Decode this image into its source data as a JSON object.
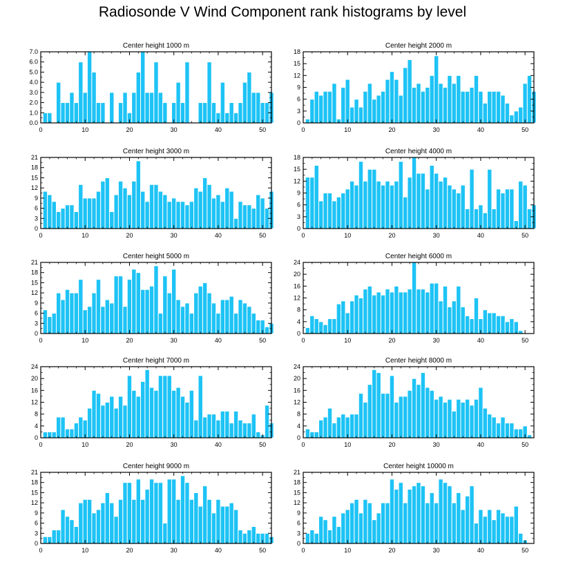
{
  "title": "Radiosonde V Wind Component rank histograms by level",
  "colors": {
    "bar": "#1ec3f5",
    "bar_edge": "#ffffff",
    "axis": "#000000"
  },
  "chart_data": [
    {
      "type": "bar",
      "title": "Center height 1000 m",
      "xlim": [
        0,
        52
      ],
      "xticks": [
        0,
        10,
        20,
        30,
        40,
        50
      ],
      "ylim": [
        0,
        7
      ],
      "yticks": [
        "0.0",
        "1.0",
        "2.0",
        "3.0",
        "4.0",
        "5.0",
        "6.0",
        "7.0"
      ],
      "values": [
        1,
        1,
        0,
        4,
        2,
        2,
        3,
        2,
        6,
        3,
        7,
        5,
        2,
        2,
        0,
        3,
        0,
        2,
        3,
        1,
        3,
        5,
        7,
        3,
        3,
        6,
        3,
        2,
        0,
        2,
        4,
        2,
        6,
        0,
        0,
        2,
        2,
        6,
        2,
        1,
        4,
        1,
        2,
        1,
        2,
        4,
        5,
        3,
        3,
        2,
        2,
        3
      ]
    },
    {
      "type": "bar",
      "title": "Center height 2000 m",
      "xlim": [
        0,
        52
      ],
      "xticks": [
        0,
        10,
        20,
        30,
        40,
        50
      ],
      "ylim": [
        0,
        18
      ],
      "yticks": [
        "0",
        "3",
        "6",
        "9",
        "12",
        "15",
        "18"
      ],
      "values": [
        1,
        6,
        8,
        7,
        8,
        8,
        10,
        1,
        9,
        11,
        4,
        6,
        4,
        8,
        10,
        6,
        7,
        8,
        11,
        13,
        11,
        7,
        14,
        16,
        9,
        10,
        8,
        9,
        12,
        17,
        10,
        9,
        12,
        10,
        12,
        8,
        8,
        9,
        12,
        8,
        5,
        8,
        8,
        8,
        7,
        5,
        2,
        3,
        4,
        10,
        12,
        8
      ]
    },
    {
      "type": "bar",
      "title": "Center height 3000 m",
      "xlim": [
        0,
        52
      ],
      "xticks": [
        0,
        10,
        20,
        30,
        40,
        50
      ],
      "ylim": [
        0,
        21
      ],
      "yticks": [
        "0",
        "3",
        "6",
        "9",
        "12",
        "15",
        "18",
        "21"
      ],
      "values": [
        11,
        10,
        8,
        5,
        6,
        7,
        7,
        5,
        13,
        9,
        9,
        9,
        11,
        14,
        15,
        5,
        10,
        14,
        12,
        10,
        14,
        20,
        11,
        8,
        13,
        13,
        11,
        10,
        8,
        9,
        8,
        8,
        7,
        8,
        12,
        11,
        15,
        13,
        9,
        10,
        8,
        12,
        11,
        3,
        8,
        7,
        7,
        6,
        10,
        9,
        6,
        11
      ]
    },
    {
      "type": "bar",
      "title": "Center height 4000 m",
      "xlim": [
        0,
        52
      ],
      "xticks": [
        0,
        10,
        20,
        30,
        40,
        50
      ],
      "ylim": [
        0,
        18
      ],
      "yticks": [
        "0",
        "3",
        "6",
        "9",
        "12",
        "15",
        "18"
      ],
      "values": [
        13,
        13,
        16,
        7,
        9,
        9,
        7,
        8,
        9,
        10,
        12,
        11,
        17,
        12,
        15,
        15,
        12,
        11,
        12,
        11,
        12,
        17,
        8,
        13,
        18,
        14,
        14,
        10,
        16,
        14,
        12,
        13,
        11,
        10,
        9,
        11,
        5,
        15,
        5,
        6,
        4,
        15,
        5,
        10,
        9,
        10,
        10,
        2,
        12,
        11,
        5,
        6
      ]
    },
    {
      "type": "bar",
      "title": "Center height 5000 m",
      "xlim": [
        0,
        52
      ],
      "xticks": [
        0,
        10,
        20,
        30,
        40,
        50
      ],
      "ylim": [
        0,
        21
      ],
      "yticks": [
        "0",
        "3",
        "6",
        "9",
        "12",
        "15",
        "18",
        "21"
      ],
      "values": [
        7,
        5,
        6,
        12,
        10,
        13,
        12,
        12,
        16,
        7,
        8,
        12,
        16,
        8,
        10,
        9,
        17,
        17,
        8,
        16,
        19,
        18,
        13,
        13,
        14,
        20,
        6,
        17,
        12,
        19,
        10,
        8,
        9,
        6,
        12,
        14,
        15,
        12,
        9,
        6,
        10,
        10,
        11,
        6,
        10,
        9,
        8,
        6,
        4,
        4,
        2,
        3
      ]
    },
    {
      "type": "bar",
      "title": "Center height 6000 m",
      "xlim": [
        0,
        52
      ],
      "xticks": [
        0,
        10,
        20,
        30,
        40,
        50
      ],
      "ylim": [
        0,
        24
      ],
      "yticks": [
        "0",
        "4",
        "8",
        "12",
        "16",
        "20",
        "24"
      ],
      "values": [
        2,
        6,
        5,
        4,
        3,
        5,
        5,
        10,
        11,
        7,
        11,
        13,
        12,
        15,
        16,
        13,
        14,
        13,
        15,
        14,
        16,
        14,
        14,
        15,
        24,
        15,
        15,
        14,
        17,
        17,
        11,
        16,
        9,
        11,
        16,
        9,
        6,
        5,
        12,
        5,
        8,
        7,
        7,
        6,
        6,
        4,
        5,
        4,
        1,
        0,
        0,
        0
      ]
    },
    {
      "type": "bar",
      "title": "Center height 7000 m",
      "xlim": [
        0,
        52
      ],
      "xticks": [
        0,
        10,
        20,
        30,
        40,
        50
      ],
      "ylim": [
        0,
        24
      ],
      "yticks": [
        "0",
        "4",
        "8",
        "12",
        "16",
        "20",
        "24"
      ],
      "values": [
        2,
        2,
        2,
        7,
        7,
        3,
        3,
        5,
        7,
        6,
        10,
        16,
        15,
        11,
        12,
        14,
        10,
        14,
        11,
        21,
        16,
        14,
        19,
        23,
        17,
        16,
        21,
        21,
        21,
        16,
        17,
        14,
        12,
        16,
        6,
        21,
        7,
        8,
        8,
        6,
        9,
        9,
        5,
        9,
        6,
        5,
        5,
        8,
        2,
        1,
        11,
        5
      ]
    },
    {
      "type": "bar",
      "title": "Center height 8000 m",
      "xlim": [
        0,
        52
      ],
      "xticks": [
        0,
        10,
        20,
        30,
        40,
        50
      ],
      "ylim": [
        0,
        24
      ],
      "yticks": [
        "0",
        "4",
        "8",
        "12",
        "16",
        "20",
        "24"
      ],
      "values": [
        3,
        2,
        2,
        6,
        7,
        10,
        5,
        7,
        8,
        7,
        8,
        8,
        15,
        12,
        18,
        23,
        22,
        15,
        15,
        21,
        12,
        14,
        14,
        16,
        20,
        18,
        22,
        17,
        16,
        13,
        14,
        12,
        13,
        9,
        13,
        12,
        13,
        11,
        13,
        17,
        10,
        8,
        7,
        5,
        7,
        5,
        5,
        3,
        3,
        4,
        1,
        0
      ]
    },
    {
      "type": "bar",
      "title": "Center height 9000 m",
      "xlim": [
        0,
        52
      ],
      "xticks": [
        0,
        10,
        20,
        30,
        40,
        50
      ],
      "ylim": [
        0,
        21
      ],
      "yticks": [
        "0",
        "3",
        "6",
        "9",
        "12",
        "15",
        "18",
        "21"
      ],
      "values": [
        2,
        2,
        4,
        4,
        10,
        8,
        7,
        5,
        12,
        13,
        13,
        9,
        10,
        12,
        15,
        12,
        8,
        13,
        18,
        18,
        13,
        19,
        13,
        16,
        19,
        18,
        18,
        6,
        19,
        19,
        13,
        20,
        18,
        13,
        15,
        11,
        17,
        13,
        9,
        13,
        11,
        11,
        12,
        10,
        4,
        3,
        4,
        5,
        3,
        3,
        3,
        2
      ]
    },
    {
      "type": "bar",
      "title": "Center height 10000 m",
      "xlim": [
        0,
        52
      ],
      "xticks": [
        0,
        10,
        20,
        30,
        40,
        50
      ],
      "ylim": [
        0,
        21
      ],
      "yticks": [
        "0",
        "3",
        "6",
        "9",
        "12",
        "15",
        "18",
        "21"
      ],
      "values": [
        3,
        4,
        3,
        8,
        7,
        4,
        8,
        5,
        9,
        10,
        12,
        13,
        9,
        13,
        12,
        7,
        9,
        12,
        12,
        19,
        16,
        18,
        12,
        16,
        17,
        18,
        17,
        12,
        15,
        12,
        19,
        18,
        17,
        12,
        15,
        10,
        14,
        17,
        6,
        10,
        8,
        10,
        7,
        10,
        9,
        8,
        8,
        11,
        3,
        1,
        0,
        0
      ]
    }
  ]
}
